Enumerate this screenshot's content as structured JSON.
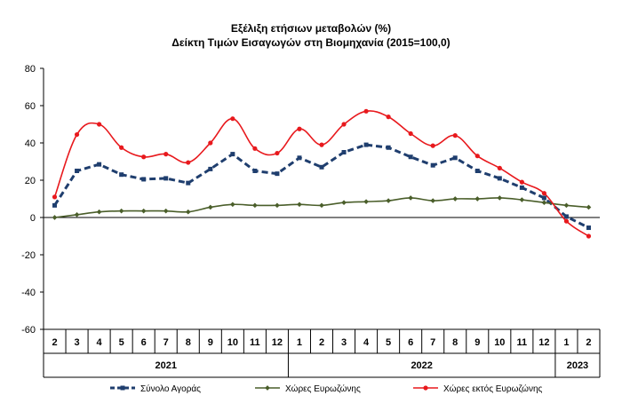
{
  "chart_data": {
    "type": "line",
    "title": "Εξέλιξη ετήσιων μεταβολών (%)",
    "subtitle": "Δείκτη Τιμών Εισαγωγών στη Βιομηχανία (2015=100,0)",
    "xlabel": "",
    "ylabel": "",
    "categories": [
      "2",
      "3",
      "4",
      "5",
      "6",
      "7",
      "8",
      "9",
      "10",
      "11",
      "12",
      "1",
      "2",
      "3",
      "4",
      "5",
      "6",
      "7",
      "8",
      "9",
      "10",
      "11",
      "12",
      "1",
      "2"
    ],
    "years": [
      {
        "label": "2021",
        "from": 0,
        "to": 10
      },
      {
        "label": "2022",
        "from": 11,
        "to": 22
      },
      {
        "label": "2023",
        "from": 23,
        "to": 24
      }
    ],
    "ylim": [
      -60,
      80
    ],
    "yticks": [
      80,
      60,
      40,
      20,
      0,
      -20,
      -40,
      -60
    ],
    "grid": false,
    "legend_position": "bottom",
    "series": [
      {
        "name": "Σύνολο Αγοράς",
        "color": "#1f3e6e",
        "style": "dashed",
        "values": [
          6.5,
          25,
          28.5,
          23,
          20.5,
          21,
          18.5,
          26,
          34,
          25,
          23.5,
          32,
          27,
          35,
          39,
          37.5,
          32.5,
          28,
          32,
          25,
          21,
          16,
          10.5,
          0.5,
          -5.5
        ]
      },
      {
        "name": "Χώρες Ευρωζώνης",
        "color": "#4a5e2a",
        "style": "solid",
        "values": [
          0,
          1.5,
          3,
          3.5,
          3.5,
          3.5,
          3,
          5.5,
          7,
          6.5,
          6.5,
          7,
          6.5,
          8,
          8.5,
          9,
          10.5,
          9,
          10,
          10,
          10.5,
          9.5,
          8,
          6.5,
          5.5
        ]
      },
      {
        "name": "Χώρες εκτός Ευρωζώνης",
        "color": "#e8191d",
        "style": "solid",
        "values": [
          11,
          44.5,
          50,
          37.5,
          32.5,
          34,
          29.5,
          40,
          53,
          37,
          34.5,
          47.5,
          39,
          50,
          57,
          54,
          45,
          38.5,
          44,
          33,
          26.5,
          19,
          13,
          -2,
          -10
        ]
      }
    ]
  }
}
